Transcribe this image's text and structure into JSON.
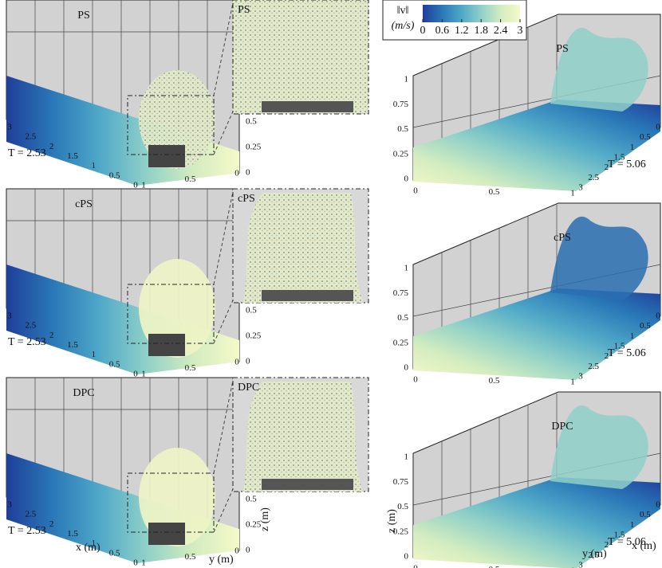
{
  "colorbar": {
    "label": "‖v‖",
    "unit": "(m/s)",
    "ticks": [
      0,
      0.6,
      1.2,
      1.8,
      2.4,
      3
    ],
    "colormap": [
      "#1f3f99",
      "#2a78b8",
      "#4fa8c8",
      "#8fd0c8",
      "#d2ecc0",
      "#f5f9c8"
    ]
  },
  "panels": [
    {
      "left_label": "PS",
      "left_time": "T = 2.53",
      "inset_label": "PS",
      "right_label": "PS",
      "right_time": "T = 5.06"
    },
    {
      "left_label": "cPS",
      "left_time": "T = 2.53",
      "inset_label": "cPS",
      "right_label": "cPS",
      "right_time": "T = 5.06"
    },
    {
      "left_label": "DPC",
      "left_time": "T = 2.53",
      "inset_label": "DPC",
      "right_label": "DPC",
      "right_time": "T = 5.06"
    }
  ],
  "left_axes": {
    "x_ticks": [
      3,
      2.5,
      2,
      1.5,
      1,
      0.5,
      0
    ],
    "y_ticks": [
      1,
      0.5,
      0
    ],
    "z_ticks": [
      0,
      0.25,
      0.5
    ]
  },
  "right_axes": {
    "x_ticks": [
      3,
      2.5,
      2,
      1.5,
      1,
      0.5,
      0
    ],
    "y_ticks": [
      0,
      0.5,
      1
    ],
    "z_ticks": [
      0,
      0.25,
      0.5,
      0.75,
      1
    ]
  },
  "axis_labels": {
    "x": "x (m)",
    "y": "y (m)",
    "z": "z (m)"
  }
}
